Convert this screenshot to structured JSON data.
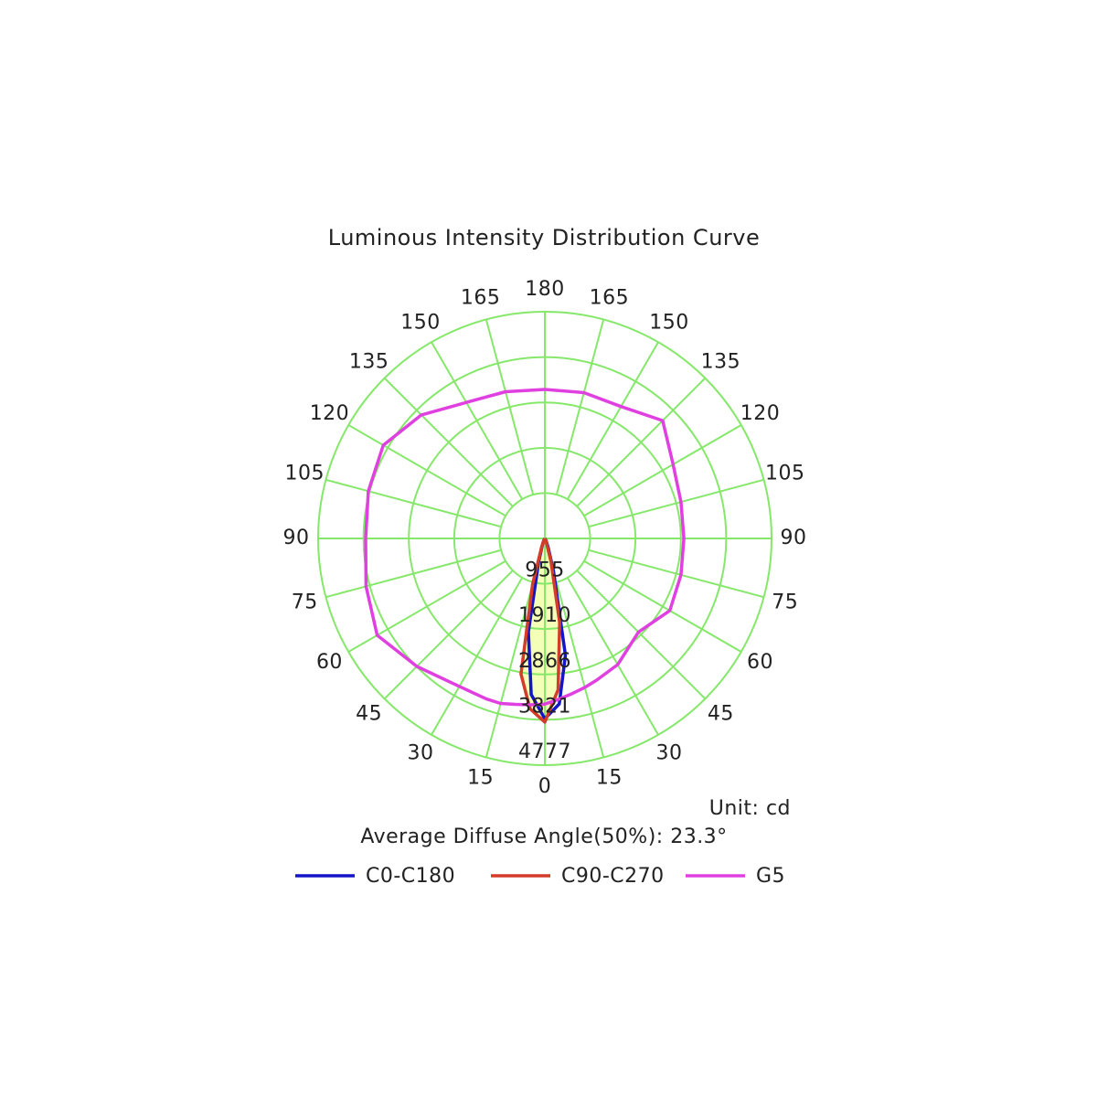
{
  "chart_data": {
    "type": "polar",
    "title": "Luminous Intensity Distribution Curve",
    "unit_label": "Unit: cd",
    "annotation": "Average Diffuse Angle(50%): 23.3°",
    "x": [
      -180,
      -165,
      -150,
      -135,
      -120,
      -105,
      -90,
      -75,
      -60,
      -45,
      -30,
      -20,
      -15,
      -10,
      -5,
      0,
      5,
      10,
      15,
      20,
      30,
      45,
      60,
      75,
      90,
      105,
      120,
      135,
      150,
      165,
      180
    ],
    "series": [
      {
        "name": "C0-C180",
        "color": "#1414c8",
        "fill": null,
        "values": [
          0,
          0,
          0,
          0,
          0,
          0,
          0,
          0,
          0,
          0,
          40,
          150,
          500,
          2000,
          3300,
          3800,
          3500,
          2500,
          700,
          200,
          50,
          0,
          0,
          0,
          0,
          0,
          0,
          0,
          0,
          0,
          0
        ]
      },
      {
        "name": "C90-C270",
        "color": "#d23c28",
        "fill": "#f4ffb8",
        "values": [
          0,
          0,
          0,
          0,
          0,
          0,
          0,
          0,
          0,
          0,
          50,
          200,
          1000,
          2900,
          3600,
          3870,
          3200,
          1800,
          500,
          100,
          30,
          0,
          0,
          0,
          0,
          0,
          0,
          0,
          0,
          0,
          0
        ]
      },
      {
        "name": "G5",
        "color": "#e040e0",
        "fill": null,
        "values": [
          3140,
          3200,
          3310,
          3680,
          3930,
          3850,
          3775,
          3900,
          4080,
          3815,
          3600,
          3600,
          3600,
          3550,
          3520,
          3490,
          3400,
          3320,
          3250,
          3180,
          3070,
          2790,
          3040,
          2970,
          2930,
          2970,
          3120,
          3510,
          3210,
          3180,
          3140
        ]
      }
    ],
    "ylim": [
      0,
      4777
    ],
    "yticks": [
      955,
      1910,
      2866,
      3821,
      4777
    ],
    "xticks": [
      0,
      15,
      30,
      45,
      60,
      75,
      90,
      105,
      120,
      135,
      150,
      165,
      180,
      {
        "value": -15,
        "label": "15"
      },
      {
        "value": -30,
        "label": "30"
      },
      {
        "value": -45,
        "label": "45"
      },
      {
        "value": -60,
        "label": "60"
      },
      {
        "value": -75,
        "label": "75"
      },
      {
        "value": -90,
        "label": "90"
      },
      {
        "value": -105,
        "label": "105"
      },
      {
        "value": -120,
        "label": "120"
      },
      {
        "value": -135,
        "label": "135"
      },
      {
        "value": -150,
        "label": "150"
      },
      {
        "value": -165,
        "label": "165"
      }
    ],
    "grid": true,
    "grid_color": "#86e86a"
  }
}
